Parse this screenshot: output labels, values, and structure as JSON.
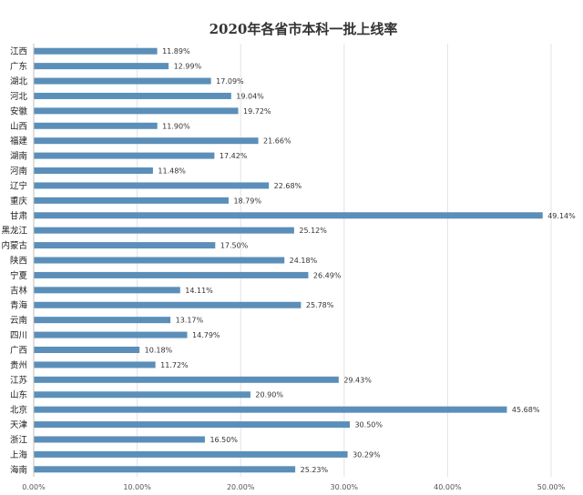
{
  "chart_data": {
    "type": "bar",
    "orientation": "horizontal",
    "title": "2020年各省市本科一批上线率",
    "categories": [
      "江西",
      "广东",
      "湖北",
      "河北",
      "安徽",
      "山西",
      "福建",
      "湖南",
      "河南",
      "辽宁",
      "重庆",
      "甘肃",
      "黑龙江",
      "内蒙古",
      "陕西",
      "宁夏",
      "吉林",
      "青海",
      "云南",
      "四川",
      "广西",
      "贵州",
      "江苏",
      "山东",
      "北京",
      "天津",
      "浙江",
      "上海",
      "海南"
    ],
    "values": [
      11.89,
      12.99,
      17.09,
      19.04,
      19.72,
      11.9,
      21.66,
      17.42,
      11.48,
      22.68,
      18.79,
      49.14,
      25.12,
      17.5,
      24.18,
      26.49,
      14.11,
      25.78,
      13.17,
      14.79,
      10.18,
      11.72,
      29.43,
      20.9,
      45.68,
      30.5,
      16.5,
      30.29,
      25.23
    ],
    "value_labels": [
      "11.89%",
      "12.99%",
      "17.09%",
      "19.04%",
      "19.72%",
      "11.90%",
      "21.66%",
      "17.42%",
      "11.48%",
      "22.68%",
      "18.79%",
      "49.14%",
      "25.12%",
      "17.50%",
      "24.18%",
      "26.49%",
      "14.11%",
      "25.78%",
      "13.17%",
      "14.79%",
      "10.18%",
      "11.72%",
      "29.43%",
      "20.90%",
      "45.68%",
      "30.50%",
      "16.50%",
      "30.29%",
      "25.23%"
    ],
    "x_ticks": [
      0,
      10,
      20,
      30,
      40,
      50
    ],
    "x_tick_labels": [
      "0.00%",
      "10.00%",
      "20.00%",
      "30.00%",
      "40.00%",
      "50.00%"
    ],
    "xlim": [
      0,
      50
    ],
    "xlabel": "",
    "ylabel": "",
    "grid": "vertical",
    "legend": "none",
    "bar_color": "#5b8fb9"
  }
}
